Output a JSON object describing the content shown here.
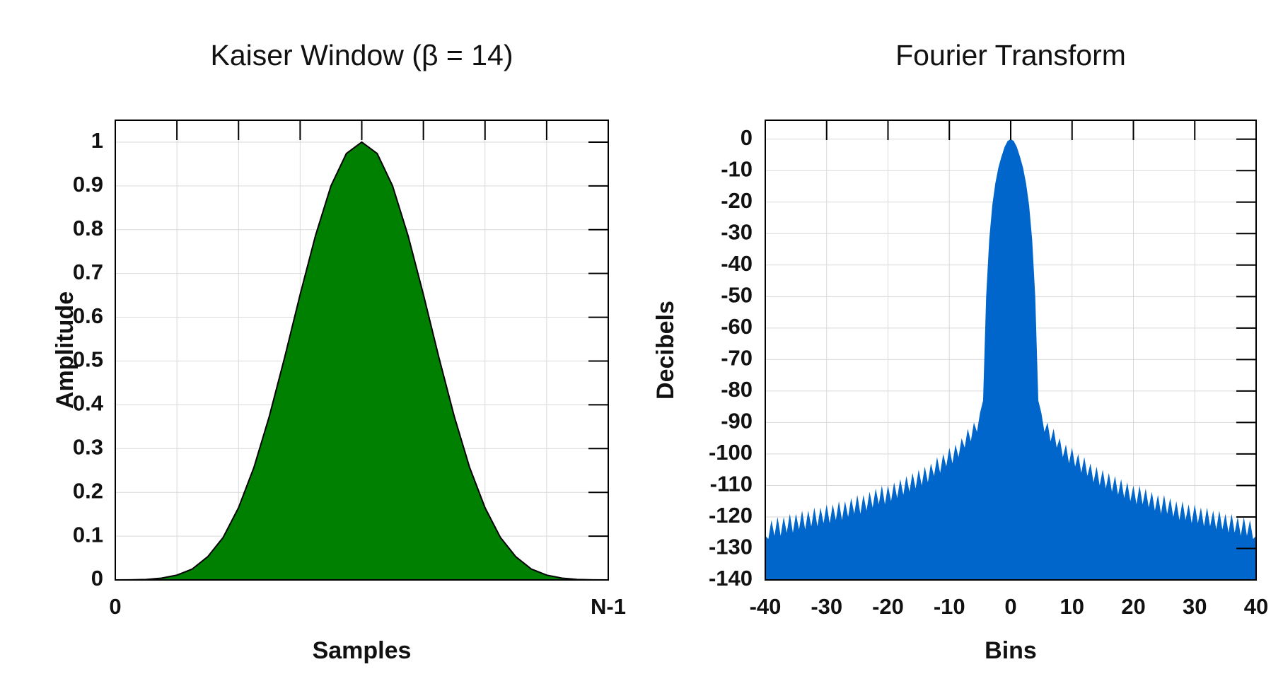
{
  "chart_data": [
    {
      "type": "area",
      "title": "Kaiser Window (β = 14)",
      "x_label": "Samples",
      "y_label": "Amplitude",
      "x": [
        0,
        1,
        2,
        3,
        4,
        5,
        6,
        7,
        8,
        9,
        10,
        11,
        12,
        13,
        14,
        15,
        16,
        17,
        18,
        19,
        20,
        21,
        22,
        23,
        24,
        25,
        26,
        27,
        28,
        29,
        30,
        31,
        32
      ],
      "values": [
        0,
        0.0002,
        0.001,
        0.004,
        0.011,
        0.025,
        0.053,
        0.097,
        0.165,
        0.257,
        0.374,
        0.509,
        0.652,
        0.787,
        0.9,
        0.974,
        1,
        0.974,
        0.9,
        0.787,
        0.652,
        0.509,
        0.374,
        0.257,
        0.165,
        0.097,
        0.053,
        0.025,
        0.011,
        0.004,
        0.001,
        0.0002,
        0
      ],
      "color": "#008000",
      "edge_color": "#000000",
      "xlim": [
        0,
        32
      ],
      "ylim": [
        0,
        1.05
      ],
      "xticks": [
        0,
        {
          "value": 4,
          "label": null
        },
        {
          "value": 8,
          "label": null
        },
        {
          "value": 12,
          "label": null
        },
        {
          "value": 16,
          "label": null
        },
        {
          "value": 20,
          "label": null
        },
        {
          "value": 24,
          "label": null
        },
        {
          "value": 28,
          "label": null
        },
        {
          "value": 32,
          "label": "N-1"
        }
      ],
      "yticks": [
        0,
        0.1,
        0.2,
        0.3,
        0.4,
        0.5,
        0.6,
        0.7,
        0.8,
        0.9,
        1
      ],
      "grid": true
    },
    {
      "type": "area",
      "title": "Fourier Transform",
      "x_label": "Bins",
      "y_label": "Decibels",
      "x": [
        -40,
        -39.5,
        -39,
        -38.5,
        -38,
        -37.5,
        -37,
        -36.5,
        -36,
        -35.5,
        -35,
        -34.5,
        -34,
        -33.5,
        -33,
        -32.5,
        -32,
        -31.5,
        -31,
        -30.5,
        -30,
        -29.5,
        -29,
        -28.5,
        -28,
        -27.5,
        -27,
        -26.5,
        -26,
        -25.5,
        -25,
        -24.5,
        -24,
        -23.5,
        -23,
        -22.5,
        -22,
        -21.5,
        -21,
        -20.5,
        -20,
        -19.5,
        -19,
        -18.5,
        -18,
        -17.5,
        -17,
        -16.5,
        -16,
        -15.5,
        -15,
        -14.5,
        -14,
        -13.5,
        -13,
        -12.5,
        -12,
        -11.5,
        -11,
        -10.5,
        -10,
        -9.5,
        -9,
        -8.5,
        -8,
        -7.5,
        -7,
        -6.5,
        -6,
        -5.5,
        -5,
        -4.5,
        -4,
        -3.5,
        -3,
        -2.5,
        -2,
        -1.5,
        -1,
        -0.5,
        0,
        0.5,
        1,
        1.5,
        2,
        2.5,
        3,
        3.5,
        4,
        4.5,
        5,
        5.5,
        6,
        6.5,
        7,
        7.5,
        8,
        8.5,
        9,
        9.5,
        10,
        10.5,
        11,
        11.5,
        12,
        12.5,
        13,
        13.5,
        14,
        14.5,
        15,
        15.5,
        16,
        16.5,
        17,
        17.5,
        18,
        18.5,
        19,
        19.5,
        20,
        20.5,
        21,
        21.5,
        22,
        22.5,
        23,
        23.5,
        24,
        24.5,
        25,
        25.5,
        26,
        26.5,
        27,
        27.5,
        28,
        28.5,
        29,
        29.5,
        30,
        30.5,
        31,
        31.5,
        32,
        32.5,
        33,
        33.5,
        34,
        34.5,
        35,
        35.5,
        36,
        36.5,
        37,
        37.5,
        38,
        38.5,
        39,
        39.5,
        40
      ],
      "values": [
        -126,
        -127,
        -121,
        -126,
        -120,
        -126,
        -120,
        -125,
        -119,
        -125,
        -119,
        -124,
        -118,
        -124,
        -118,
        -123,
        -117,
        -123,
        -117,
        -122,
        -116,
        -122,
        -116,
        -121,
        -115,
        -121,
        -115,
        -120,
        -114,
        -119,
        -113,
        -119,
        -113,
        -118,
        -112,
        -117,
        -111,
        -116,
        -110,
        -116,
        -110,
        -115,
        -109,
        -114,
        -108,
        -113,
        -107,
        -112,
        -106,
        -111,
        -105,
        -110,
        -104,
        -109,
        -103,
        -107,
        -101,
        -106,
        -100,
        -104,
        -98,
        -103,
        -97,
        -101,
        -95,
        -98,
        -92,
        -96,
        -90,
        -93,
        -87,
        -83,
        -50,
        -32,
        -21,
        -14,
        -9,
        -5.5,
        -2.5,
        -0.6,
        0,
        -0.6,
        -2.5,
        -5.5,
        -9,
        -14,
        -21,
        -32,
        -50,
        -83,
        -87,
        -93,
        -90,
        -96,
        -92,
        -98,
        -95,
        -101,
        -97,
        -103,
        -98,
        -104,
        -100,
        -106,
        -101,
        -107,
        -103,
        -109,
        -104,
        -110,
        -105,
        -111,
        -106,
        -112,
        -107,
        -113,
        -108,
        -114,
        -109,
        -115,
        -110,
        -116,
        -110,
        -116,
        -111,
        -117,
        -112,
        -118,
        -113,
        -119,
        -113,
        -119,
        -114,
        -120,
        -115,
        -121,
        -115,
        -121,
        -116,
        -122,
        -116,
        -122,
        -117,
        -123,
        -117,
        -123,
        -118,
        -124,
        -118,
        -124,
        -119,
        -125,
        -119,
        -125,
        -120,
        -126,
        -120,
        -126,
        -121,
        -127,
        -126
      ],
      "color": "#0066cc",
      "xlim": [
        -40,
        40
      ],
      "ylim": [
        -140,
        6
      ],
      "xticks": [
        -40,
        -30,
        -20,
        -10,
        0,
        10,
        20,
        30,
        40
      ],
      "yticks": [
        0,
        -10,
        -20,
        -30,
        -40,
        -50,
        -60,
        -70,
        -80,
        -90,
        -100,
        -110,
        -120,
        -130,
        -140
      ],
      "grid": true
    }
  ]
}
